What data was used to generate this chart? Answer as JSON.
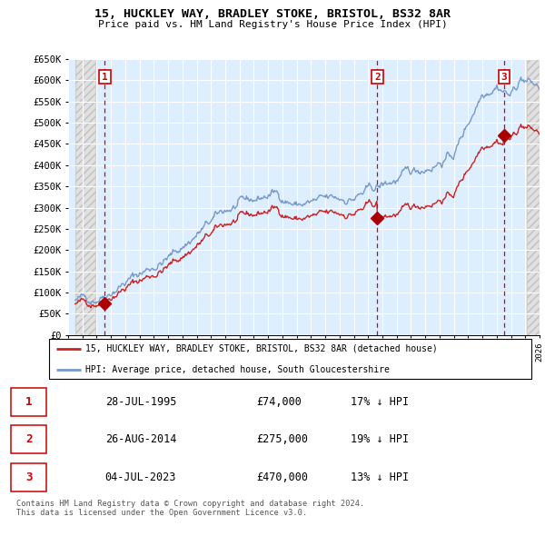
{
  "title_line1": "15, HUCKLEY WAY, BRADLEY STOKE, BRISTOL, BS32 8AR",
  "title_line2": "Price paid vs. HM Land Registry's House Price Index (HPI)",
  "xlim_years": [
    1993.5,
    2026
  ],
  "ylim": [
    0,
    650000
  ],
  "yticks": [
    0,
    50000,
    100000,
    150000,
    200000,
    250000,
    300000,
    350000,
    400000,
    450000,
    500000,
    550000,
    600000,
    650000
  ],
  "ytick_labels": [
    "£0",
    "£50K",
    "£100K",
    "£150K",
    "£200K",
    "£250K",
    "£300K",
    "£350K",
    "£400K",
    "£450K",
    "£500K",
    "£550K",
    "£600K",
    "£650K"
  ],
  "sales": [
    {
      "date_year": 1995.57,
      "price": 74000,
      "label": "1"
    },
    {
      "date_year": 2014.65,
      "price": 275000,
      "label": "2"
    },
    {
      "date_year": 2023.5,
      "price": 470000,
      "label": "3"
    }
  ],
  "sale_vline_color": "#dd0000",
  "sale_dot_color": "#aa0000",
  "sale_label_color": "#cc0000",
  "hpi_color": "#7799cc",
  "red_line_color": "#cc2222",
  "legend_entries": [
    "15, HUCKLEY WAY, BRADLEY STOKE, BRISTOL, BS32 8AR (detached house)",
    "HPI: Average price, detached house, South Gloucestershire"
  ],
  "legend_line_colors": [
    "#cc2222",
    "#7799cc"
  ],
  "transaction_table": [
    {
      "num": "1",
      "date": "28-JUL-1995",
      "price": "£74,000",
      "hpi": "17% ↓ HPI"
    },
    {
      "num": "2",
      "date": "26-AUG-2014",
      "price": "£275,000",
      "hpi": "19% ↓ HPI"
    },
    {
      "num": "3",
      "date": "04-JUL-2023",
      "price": "£470,000",
      "hpi": "13% ↓ HPI"
    }
  ],
  "footer_text": "Contains HM Land Registry data © Crown copyright and database right 2024.\nThis data is licensed under the Open Government Licence v3.0.",
  "plot_bg_color": "#ddeeff",
  "grid_color": "#ffffff",
  "hatched_bg_color": "#e0e0e0"
}
